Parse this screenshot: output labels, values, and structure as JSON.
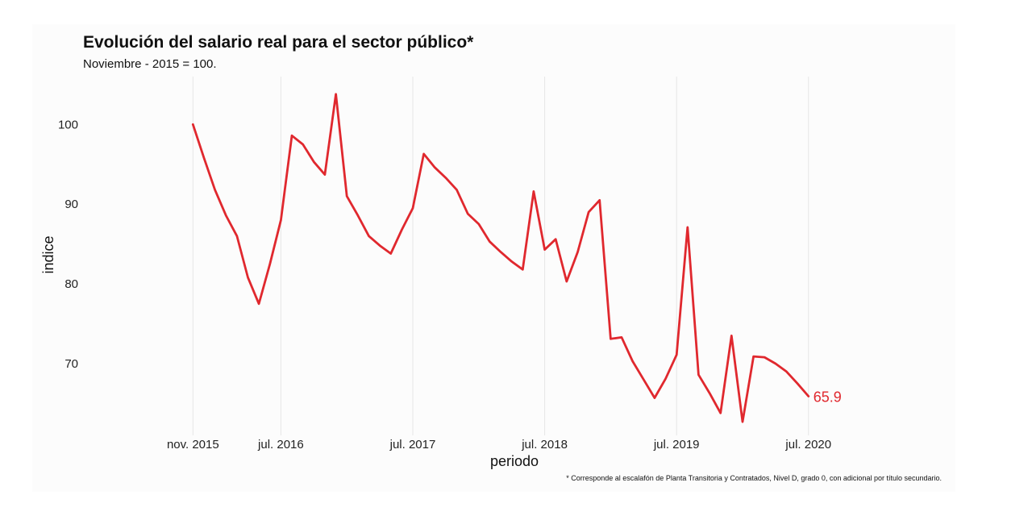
{
  "chart_data": {
    "type": "line",
    "title": "Evolución del salario real para el sector público*",
    "subtitle": "Noviembre - 2015 = 100.",
    "xlabel": "periodo",
    "ylabel": "indice",
    "caption": "* Corresponde al escalafón de Planta Transitoria y Contratados, Nivel D, grado 0, con adicional por título secundario.",
    "x_ticks": [
      "nov. 2015",
      "jul. 2016",
      "jul. 2017",
      "jul. 2018",
      "jul. 2019",
      "jul. 2020"
    ],
    "y_ticks": [
      70,
      80,
      90,
      100
    ],
    "ylim": [
      61,
      106
    ],
    "xlim": [
      "2015-01",
      "2021-08"
    ],
    "grid": "vertical-at-x-ticks",
    "legend": "none",
    "line_color": "#e0282e",
    "end_label": "65.9",
    "series": [
      {
        "x": [
          "2015-11",
          "2015-12",
          "2016-01",
          "2016-02",
          "2016-03",
          "2016-04",
          "2016-05",
          "2016-06",
          "2016-07",
          "2016-08",
          "2016-09",
          "2016-10",
          "2016-11",
          "2016-12",
          "2017-01",
          "2017-02",
          "2017-03",
          "2017-04",
          "2017-05",
          "2017-06",
          "2017-07",
          "2017-08",
          "2017-09",
          "2017-10",
          "2017-11",
          "2017-12",
          "2018-01",
          "2018-02",
          "2018-03",
          "2018-04",
          "2018-05",
          "2018-06",
          "2018-07",
          "2018-08",
          "2018-09",
          "2018-10",
          "2018-11",
          "2018-12",
          "2019-01",
          "2019-02",
          "2019-03",
          "2019-04",
          "2019-05",
          "2019-06",
          "2019-07",
          "2019-08",
          "2019-09",
          "2019-10",
          "2019-11",
          "2019-12",
          "2020-01",
          "2020-02",
          "2020-03",
          "2020-04",
          "2020-05",
          "2020-06",
          "2020-07"
        ],
        "values": [
          100,
          95.8,
          91.8,
          88.6,
          86.0,
          80.8,
          77.5,
          82.5,
          88.0,
          98.6,
          97.5,
          95.3,
          93.7,
          103.8,
          91.0,
          88.6,
          86.0,
          84.8,
          83.8,
          86.8,
          89.5,
          96.3,
          94.6,
          93.3,
          91.8,
          88.8,
          87.5,
          85.3,
          84.0,
          82.8,
          81.8,
          91.6,
          84.3,
          85.6,
          80.3,
          84.0,
          89.0,
          90.5,
          73.1,
          73.3,
          70.3,
          68.0,
          65.7,
          68.1,
          71.1,
          87.1,
          68.6,
          66.3,
          63.8,
          73.5,
          62.7,
          70.9,
          70.8,
          70.0,
          69.0,
          67.5,
          65.9
        ]
      }
    ]
  }
}
